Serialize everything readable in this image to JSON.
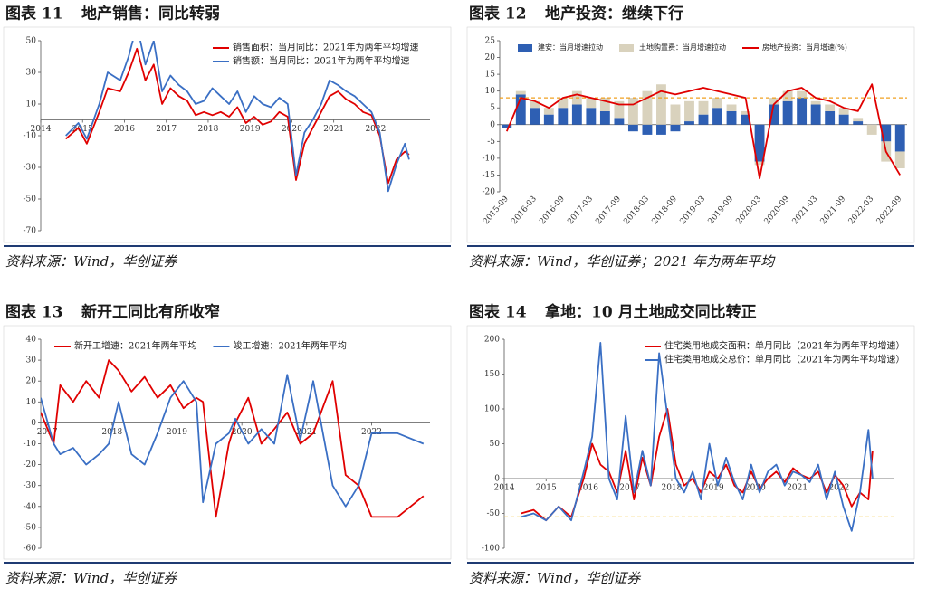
{
  "chart_data": [
    {
      "type": "line",
      "figure": "图表 11",
      "title": "地产销售：同比转弱",
      "source": "资料来源：Wind，华创证券",
      "x": [
        2014.6,
        2014.9,
        2015.1,
        2015.4,
        2015.6,
        2015.9,
        2016.1,
        2016.3,
        2016.5,
        2016.7,
        2016.9,
        2017.1,
        2017.3,
        2017.5,
        2017.7,
        2017.9,
        2018.1,
        2018.3,
        2018.5,
        2018.7,
        2018.9,
        2019.1,
        2019.3,
        2019.5,
        2019.7,
        2019.9,
        2020.1,
        2020.3,
        2020.5,
        2020.7,
        2020.9,
        2021.1,
        2021.3,
        2021.5,
        2021.7,
        2021.9,
        2022.1,
        2022.3,
        2022.5,
        2022.7,
        2022.8
      ],
      "series": [
        {
          "name": "销售面积：当月同比：2021年为两年平均增速",
          "color": "#e00000",
          "values": [
            -12,
            -5,
            -15,
            5,
            20,
            18,
            30,
            45,
            25,
            35,
            10,
            20,
            15,
            12,
            3,
            5,
            3,
            5,
            2,
            8,
            -2,
            2,
            -3,
            -1,
            5,
            2,
            -38,
            -15,
            -5,
            5,
            15,
            18,
            13,
            10,
            5,
            3,
            -10,
            -40,
            -25,
            -20,
            -22
          ]
        },
        {
          "name": "销售额：当月同比：2021年为两年平均增速",
          "color": "#3a6fc4",
          "values": [
            -10,
            -2,
            -12,
            10,
            30,
            25,
            40,
            60,
            35,
            50,
            18,
            28,
            22,
            18,
            10,
            12,
            20,
            15,
            10,
            18,
            5,
            15,
            10,
            8,
            14,
            10,
            -35,
            -8,
            0,
            10,
            25,
            22,
            18,
            15,
            10,
            5,
            -8,
            -45,
            -28,
            -15,
            -25
          ]
        }
      ],
      "xlim": [
        2014,
        2023.3
      ],
      "xticks": [
        2014,
        2015,
        2016,
        2017,
        2018,
        2019,
        2020,
        2021,
        2022
      ],
      "ylim": [
        -70,
        50
      ],
      "yticks": [
        50,
        30,
        10,
        -10,
        -30,
        -50,
        -70
      ],
      "legend": "upper right"
    },
    {
      "type": "bar",
      "figure": "图表 12",
      "title": "地产投资：继续下行",
      "source": "资料来源：Wind，华创证券；2021 年为两年平均",
      "categories": [
        "2015-09",
        null,
        "2016-03",
        null,
        "2016-09",
        null,
        "2017-03",
        null,
        "2017-09",
        null,
        "2018-03",
        null,
        "2018-09",
        null,
        "2019-03",
        null,
        "2019-09",
        null,
        "2020-03",
        null,
        "2020-09",
        null,
        "2021-03",
        null,
        "2021-09",
        null,
        "2022-03",
        null,
        "2022-09"
      ],
      "series": [
        {
          "name": "建安：当月增速拉动",
          "type": "bar",
          "color": "#2e5fb3",
          "values": [
            -1,
            9,
            5,
            3,
            5,
            6,
            5,
            4,
            2,
            -2,
            -3,
            -3,
            -2,
            1,
            3,
            5,
            4,
            3,
            -11,
            6,
            7,
            8,
            6,
            4,
            3,
            1,
            0,
            -5,
            -8
          ]
        },
        {
          "name": "土地购置费：当月增速拉动",
          "type": "bar",
          "color": "#d9d2bd",
          "values": [
            0,
            1,
            2,
            2,
            3,
            4,
            3,
            4,
            5,
            8,
            10,
            12,
            6,
            6,
            4,
            3,
            2,
            1,
            -1,
            2,
            3,
            2,
            1,
            2,
            2,
            1,
            -3,
            -6,
            -5
          ]
        },
        {
          "name": "房地产投资：当月增速(%)",
          "type": "line",
          "color": "#e00000",
          "values": [
            -2,
            8,
            7,
            5,
            8,
            9,
            8,
            7,
            6,
            6,
            8,
            10,
            9,
            10,
            11,
            10,
            9,
            8,
            -16,
            6,
            10,
            11,
            8,
            7,
            5,
            4,
            12,
            -8,
            -15
          ]
        }
      ],
      "reference_line": 8,
      "reference_color": "#f0a020",
      "ylim": [
        -20,
        25
      ],
      "yticks": [
        25,
        20,
        15,
        10,
        5,
        0,
        -5,
        -10,
        -15,
        -20
      ],
      "legend": "upper center"
    },
    {
      "type": "line",
      "figure": "图表 13",
      "title": "新开工同比有所收窄",
      "source": "资料来源：Wind，华创证券",
      "x": [
        2016.9,
        2017.1,
        2017.2,
        2017.4,
        2017.6,
        2017.8,
        2017.95,
        2018.1,
        2018.3,
        2018.5,
        2018.7,
        2018.9,
        2019.1,
        2019.3,
        2019.4,
        2019.6,
        2019.8,
        2019.9,
        2020.1,
        2020.3,
        2020.5,
        2020.7,
        2020.9,
        2021.1,
        2021.4,
        2021.6,
        2021.8,
        2022.0,
        2022.4,
        2022.8
      ],
      "series": [
        {
          "name": "新开工增速：2021年两年平均",
          "color": "#e00000",
          "values": [
            5,
            -10,
            18,
            10,
            20,
            12,
            30,
            25,
            15,
            22,
            12,
            18,
            7,
            12,
            10,
            -45,
            -10,
            0,
            12,
            -10,
            -3,
            5,
            -10,
            -5,
            20,
            -25,
            -30,
            -45,
            -45,
            -35
          ]
        },
        {
          "name": "竣工增速：2021年两年平均",
          "color": "#3a6fc4",
          "values": [
            12,
            -10,
            -15,
            -12,
            -20,
            -15,
            -10,
            10,
            -15,
            -20,
            -5,
            12,
            20,
            10,
            -38,
            -10,
            -5,
            2,
            -10,
            -3,
            -10,
            23,
            -8,
            20,
            -30,
            -40,
            -30,
            -5,
            -5,
            -10
          ]
        }
      ],
      "xlim": [
        2016.9,
        2022.9
      ],
      "xticks": [
        2017,
        2018,
        2019,
        2020,
        2021,
        2022
      ],
      "ylim": [
        -60,
        40
      ],
      "yticks": [
        40,
        30,
        20,
        10,
        0,
        -10,
        -20,
        -30,
        -40,
        -50,
        -60
      ],
      "legend": "upper left"
    },
    {
      "type": "line",
      "figure": "图表 14",
      "title": "拿地：10 月土地成交同比转正",
      "source": "资料来源：Wind，华创证券",
      "x": [
        2014.4,
        2014.7,
        2015.0,
        2015.3,
        2015.6,
        2015.9,
        2016.1,
        2016.3,
        2016.5,
        2016.7,
        2016.9,
        2017.1,
        2017.3,
        2017.5,
        2017.7,
        2017.9,
        2018.1,
        2018.3,
        2018.5,
        2018.7,
        2018.9,
        2019.1,
        2019.3,
        2019.5,
        2019.7,
        2019.9,
        2020.1,
        2020.3,
        2020.5,
        2020.7,
        2020.9,
        2021.1,
        2021.3,
        2021.5,
        2021.7,
        2021.9,
        2022.1,
        2022.3,
        2022.5,
        2022.7,
        2022.8
      ],
      "series": [
        {
          "name": "住宅类用地成交面积：单月同比（2021年为两年平均增速）",
          "color": "#e00000",
          "values": [
            -50,
            -45,
            -60,
            -40,
            -55,
            0,
            50,
            20,
            10,
            -20,
            40,
            -30,
            30,
            -10,
            60,
            100,
            20,
            -10,
            0,
            -20,
            10,
            0,
            20,
            -10,
            -20,
            10,
            -15,
            0,
            10,
            -5,
            15,
            5,
            0,
            10,
            -20,
            5,
            -10,
            -40,
            -20,
            -30,
            40
          ]
        },
        {
          "name": "住宅类用地成交总价：单月同比（2021年为两年平均增速）",
          "color": "#3a6fc4",
          "values": [
            -55,
            -50,
            -60,
            -40,
            -60,
            10,
            60,
            195,
            0,
            -30,
            90,
            -20,
            40,
            -10,
            180,
            90,
            0,
            -20,
            10,
            -30,
            50,
            -10,
            30,
            -5,
            -30,
            20,
            -20,
            10,
            20,
            -10,
            10,
            5,
            -5,
            20,
            -30,
            10,
            -40,
            -75,
            -20,
            70,
            0
          ]
        }
      ],
      "reference_line": -55,
      "reference_color": "#f5c842",
      "xlim": [
        2014,
        2023.3
      ],
      "xticks": [
        2014,
        2015,
        2016,
        2017,
        2018,
        2019,
        2020,
        2021,
        2022
      ],
      "ylim": [
        -100,
        200
      ],
      "yticks": [
        200,
        150,
        100,
        50,
        0,
        -50,
        -100
      ],
      "legend": "upper right"
    }
  ]
}
